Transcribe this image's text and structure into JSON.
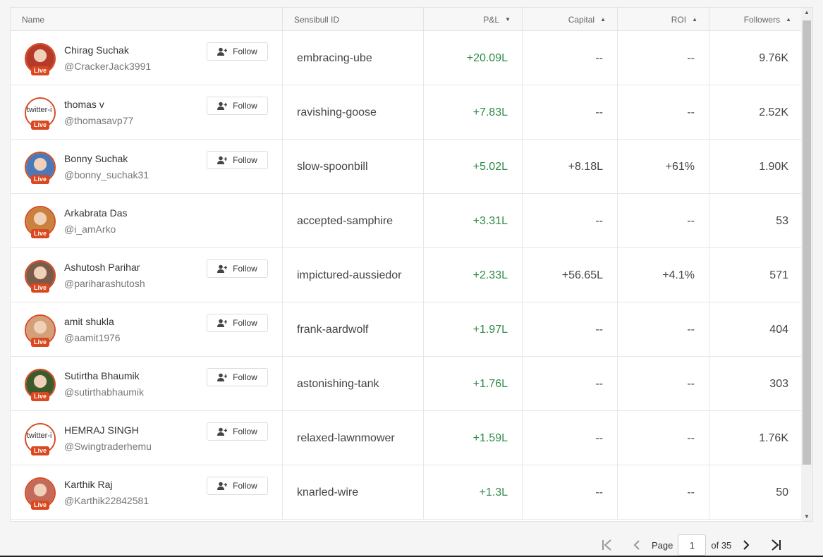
{
  "columns": {
    "name": "Name",
    "id": "Sensibull ID",
    "pnl": "P&L",
    "capital": "Capital",
    "roi": "ROI",
    "followers": "Followers"
  },
  "sort_icons": {
    "pnl": "▼",
    "capital": "▲",
    "roi": "▲",
    "followers": "▲"
  },
  "follow_label": "Follow",
  "live_label": "Live",
  "broken_avatar_text": "twitter-i",
  "rows": [
    {
      "name": "Chirag Suchak",
      "handle": "@CrackerJack3991",
      "sid": "embracing-ube",
      "pnl": "+20.09L",
      "capital": "--",
      "roi": "--",
      "followers": "9.76K",
      "follow": true,
      "avatar_broken": false,
      "avatar_color": "#b53a2a"
    },
    {
      "name": "thomas v",
      "handle": "@thomasavp77",
      "sid": "ravishing-goose",
      "pnl": "+7.83L",
      "capital": "--",
      "roi": "--",
      "followers": "2.52K",
      "follow": true,
      "avatar_broken": true,
      "avatar_color": "#ffffff"
    },
    {
      "name": "Bonny Suchak",
      "handle": "@bonny_suchak31",
      "sid": "slow-spoonbill",
      "pnl": "+5.02L",
      "capital": "+8.18L",
      "roi": "+61%",
      "followers": "1.90K",
      "follow": true,
      "avatar_broken": false,
      "avatar_color": "#4a78b8"
    },
    {
      "name": "Arkabrata Das",
      "handle": "@i_amArko",
      "sid": "accepted-samphire",
      "pnl": "+3.31L",
      "capital": "--",
      "roi": "--",
      "followers": "53",
      "follow": false,
      "avatar_broken": false,
      "avatar_color": "#c9813e"
    },
    {
      "name": "Ashutosh Parihar",
      "handle": "@pariharashutosh",
      "sid": "impictured-aussiedor",
      "pnl": "+2.33L",
      "capital": "+56.65L",
      "roi": "+4.1%",
      "followers": "571",
      "follow": true,
      "avatar_broken": false,
      "avatar_color": "#7a5a48"
    },
    {
      "name": "amit shukla",
      "handle": "@aamit1976",
      "sid": "frank-aardwolf",
      "pnl": "+1.97L",
      "capital": "--",
      "roi": "--",
      "followers": "404",
      "follow": true,
      "avatar_broken": false,
      "avatar_color": "#d3a07a"
    },
    {
      "name": "Sutirtha Bhaumik",
      "handle": "@sutirthabhaumik",
      "sid": "astonishing-tank",
      "pnl": "+1.76L",
      "capital": "--",
      "roi": "--",
      "followers": "303",
      "follow": true,
      "avatar_broken": false,
      "avatar_color": "#3c5a2c"
    },
    {
      "name": "HEMRAJ SINGH",
      "handle": "@Swingtraderhemu",
      "sid": "relaxed-lawnmower",
      "pnl": "+1.59L",
      "capital": "--",
      "roi": "--",
      "followers": "1.76K",
      "follow": true,
      "avatar_broken": true,
      "avatar_color": "#ffffff"
    },
    {
      "name": "Karthik Raj",
      "handle": "@Karthik22842581",
      "sid": "knarled-wire",
      "pnl": "+1.3L",
      "capital": "--",
      "roi": "--",
      "followers": "50",
      "follow": true,
      "avatar_broken": false,
      "avatar_color": "#c46a5a"
    }
  ],
  "pager": {
    "first_icon": "first-page-icon",
    "prev_icon": "prev-page-icon",
    "page_label": "Page",
    "current": "1",
    "of_label": "of 35",
    "next_icon": "next-page-icon",
    "last_icon": "last-page-icon"
  },
  "colors": {
    "positive": "#2e8b47",
    "live": "#d9481f"
  }
}
